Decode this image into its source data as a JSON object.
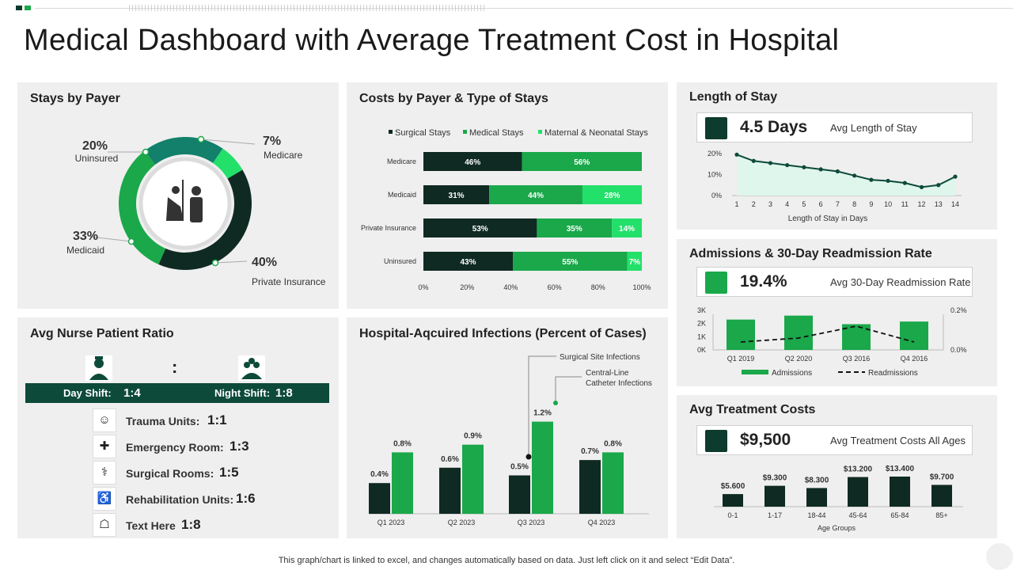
{
  "title": "Medical Dashboard with Average Treatment Cost in Hospital",
  "footer": "This graph/chart is linked to excel,  and changes automatically based on data. Just left click on it and select “Edit Data”.",
  "stays_by_payer": {
    "title": "Stays by Payer",
    "segments": [
      {
        "pct": "7%",
        "label": "Medicare",
        "value": 7,
        "color": "#22e06a"
      },
      {
        "pct": "40%",
        "label": "Private Insurance",
        "value": 40,
        "color": "#0f2a22"
      },
      {
        "pct": "33%",
        "label": "Medicaid",
        "value": 33,
        "color": "#1aa84a"
      },
      {
        "pct": "20%",
        "label": "Uninsured",
        "value": 20,
        "color": "#12806a"
      }
    ]
  },
  "costs_by_payer": {
    "title": "Costs by Payer & Type of Stays",
    "legend": [
      "Surgical Stays",
      "Medical Stays",
      "Maternal & Neonatal Stays"
    ],
    "colors": [
      "#0f2a22",
      "#1aa84a",
      "#22e06a"
    ],
    "rows": [
      {
        "label": "Medicare",
        "values": [
          46,
          56,
          0
        ],
        "texts": [
          "46%",
          "56%",
          ""
        ]
      },
      {
        "label": "Medicaid",
        "values": [
          31,
          44,
          28
        ],
        "texts": [
          "31%",
          "44%",
          "28%"
        ]
      },
      {
        "label": "Private Insurance",
        "values": [
          53,
          35,
          14
        ],
        "texts": [
          "53%",
          "35%",
          "14%"
        ]
      },
      {
        "label": "Uninsured",
        "values": [
          43,
          55,
          7
        ],
        "texts": [
          "43%",
          "55%",
          "7%"
        ]
      }
    ],
    "ticks": [
      "0%",
      "20%",
      "40%",
      "60%",
      "80%",
      "100%"
    ]
  },
  "length_of_stay": {
    "title": "Length of Stay",
    "kpi_value": "4.5 Days",
    "kpi_label": "Avg Length  of Stay",
    "xlabel": "Length of Stay in Days",
    "yticks": [
      "20%",
      "10%",
      "0%"
    ],
    "x": [
      "1",
      "2",
      "3",
      "4",
      "5",
      "6",
      "7",
      "8",
      "9",
      "10",
      "11",
      "12",
      "13",
      "14"
    ],
    "values": [
      19.5,
      16.5,
      15.5,
      14.5,
      13.5,
      12.5,
      11.5,
      9.5,
      7.5,
      7,
      6,
      4,
      5,
      9
    ]
  },
  "admissions": {
    "title": "Admissions & 30-Day Readmission Rate",
    "kpi_value": "19.4%",
    "kpi_label": "Avg 30-Day  Readmission Rate",
    "categories": [
      "Q1 2019",
      "Q2 2020",
      "Q3 2016",
      "Q4 2016"
    ],
    "admissions": [
      2300,
      2600,
      1950,
      2150
    ],
    "readmissions": [
      0.04,
      0.06,
      0.12,
      0.04
    ],
    "yticks_left": [
      "3K",
      "2K",
      "1K",
      "0K"
    ],
    "yticks_right": [
      "0.2%",
      "0.0%"
    ],
    "legend": [
      "Admissions",
      "Readmissions"
    ]
  },
  "nurse_ratio": {
    "title": "Avg Nurse Patient Ratio",
    "colon": ":",
    "day_label": "Day Shift:",
    "day_value": "1:4",
    "night_label": "Night Shift:",
    "night_value": "1:8",
    "units": [
      {
        "label": "Trauma Units:",
        "value": "1:1",
        "icon": "patient-icon",
        "glyph": "☺"
      },
      {
        "label": "Emergency Room:",
        "value": "1:3",
        "icon": "er-icon",
        "glyph": "✚"
      },
      {
        "label": "Surgical Rooms:",
        "value": "1:5",
        "icon": "surgery-icon",
        "glyph": "⚕"
      },
      {
        "label": "Rehabilitation Units:",
        "value": "1:6",
        "icon": "rehab-icon",
        "glyph": "♿"
      },
      {
        "label": "Text Here",
        "value": "1:8",
        "icon": "bed-icon",
        "glyph": "☖"
      }
    ]
  },
  "infections": {
    "title": "Hospital-Aqcuired Infections (Percent of Cases)",
    "categories": [
      "Q1 2023",
      "Q2 2023",
      "Q3 2023",
      "Q4 2023"
    ],
    "series": [
      {
        "name": "Surgical Site Infections",
        "values": [
          0.4,
          0.6,
          0.5,
          0.7
        ],
        "labels": [
          "0.4%",
          "0.6%",
          "0.5%",
          "0.7%"
        ]
      },
      {
        "name": "Central-Line Catheter Infections",
        "values": [
          0.8,
          0.9,
          1.2,
          0.8
        ],
        "labels": [
          "0.8%",
          "0.9%",
          "1.2%",
          "0.8%"
        ]
      }
    ],
    "callout1": "Surgical Site Infections",
    "callout2a": "Central-Line",
    "callout2b": "Catheter Infections"
  },
  "treatment_costs": {
    "title": "Avg Treatment Costs",
    "kpi_value": "$9,500",
    "kpi_label": "Avg Treatment  Costs All Ages",
    "xlabel": "Age Groups",
    "categories": [
      "0-1",
      "1-17",
      "18-44",
      "45-64",
      "65-84",
      "85+"
    ],
    "values": [
      5600,
      9300,
      8300,
      13200,
      13400,
      9700
    ],
    "labels": [
      "$5.600",
      "$9.300",
      "$8.300",
      "$13.200",
      "$13.400",
      "$9.700"
    ]
  }
}
